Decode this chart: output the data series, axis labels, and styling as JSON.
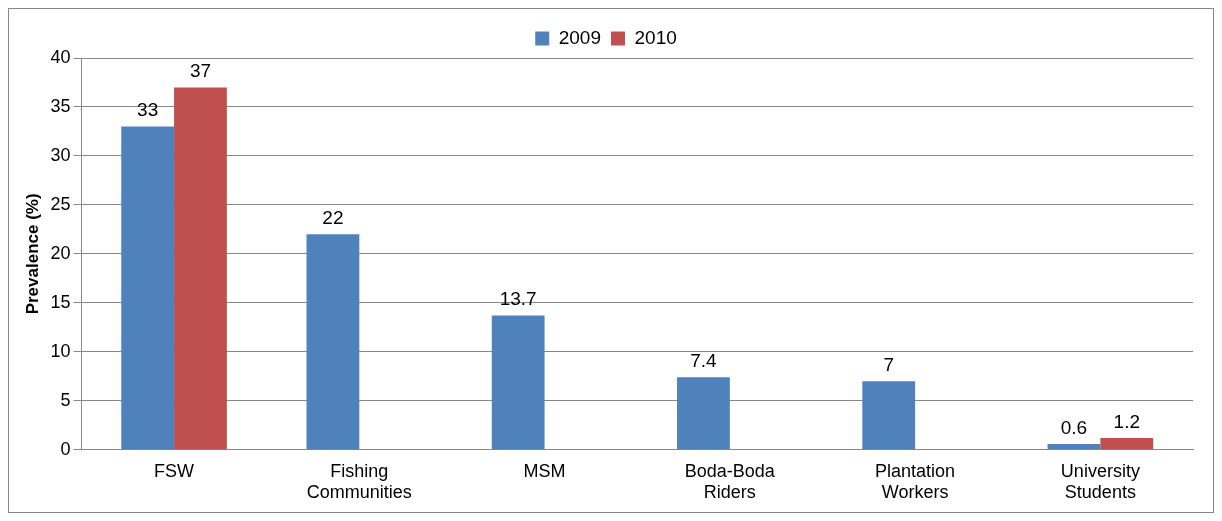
{
  "chart_data": {
    "type": "bar",
    "categories": [
      "FSW",
      "Fishing Communities",
      "MSM",
      "Boda-Boda Riders",
      "Plantation Workers",
      "University Students"
    ],
    "series": [
      {
        "name": "2009",
        "color": "#4f81bd",
        "values": [
          33,
          22,
          13.7,
          7.4,
          7,
          0.6
        ]
      },
      {
        "name": "2010",
        "color": "#c0504d",
        "values": [
          37,
          null,
          null,
          null,
          null,
          1.2
        ]
      }
    ],
    "ylabel": "Prevalence (%)",
    "ylim": [
      0,
      40
    ],
    "yticks": [
      0,
      5,
      10,
      15,
      20,
      25,
      30,
      35,
      40
    ],
    "grid": "y",
    "legend": "top",
    "data_labels": true
  }
}
